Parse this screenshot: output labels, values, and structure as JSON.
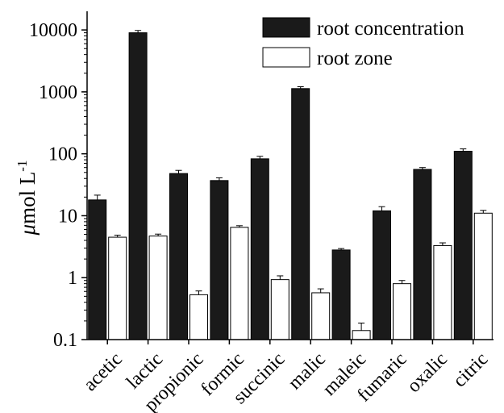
{
  "chart_data": {
    "type": "bar",
    "yscale": "log",
    "ylim": [
      0.1,
      20000
    ],
    "yticks": [
      "0.1",
      "1",
      "10",
      "100",
      "1000",
      "10000"
    ],
    "ytick_values": [
      0.1,
      1,
      10,
      100,
      1000,
      10000
    ],
    "ylabel_mu": "μ",
    "ylabel_main": "mol L",
    "ylabel_sup": "-1",
    "categories": [
      "acetic",
      "lactic",
      "propionic",
      "formic",
      "succinic",
      "malic",
      "maleic",
      "fumaric",
      "oxalic",
      "citric"
    ],
    "series": [
      {
        "name": "root concentration",
        "fill": "#1a1a1a",
        "values": [
          18,
          9000,
          48,
          37,
          83,
          1130,
          2.8,
          12,
          56,
          110
        ],
        "errors": [
          3.5,
          800,
          6,
          4,
          8,
          80,
          0.15,
          2,
          4,
          10
        ]
      },
      {
        "name": "root zone",
        "fill": "#ffffff",
        "values": [
          4.5,
          4.7,
          0.53,
          6.5,
          0.93,
          0.57,
          0.14,
          0.8,
          3.3,
          11
        ],
        "errors": [
          0.35,
          0.35,
          0.08,
          0.4,
          0.14,
          0.09,
          0.045,
          0.1,
          0.35,
          1.2
        ]
      }
    ],
    "legend_position": "top-right",
    "grid": false
  }
}
